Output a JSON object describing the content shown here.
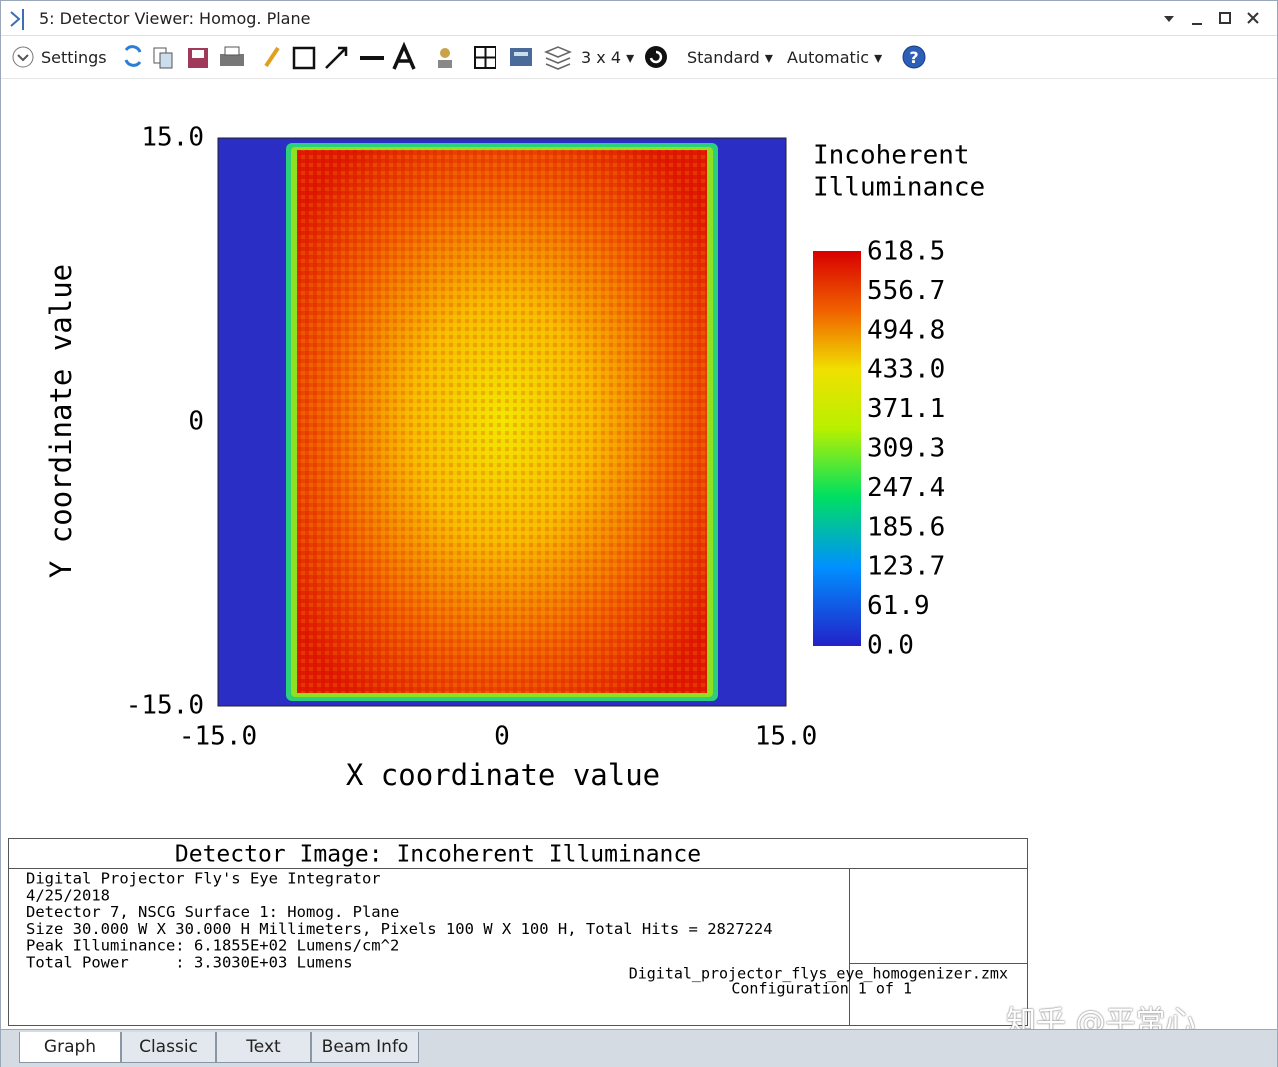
{
  "window": {
    "title": "5: Detector Viewer: Homog. Plane"
  },
  "toolbar": {
    "settings": "Settings",
    "layout": "3 x 4",
    "display": "Standard",
    "scale": "Automatic"
  },
  "plot": {
    "x_label": "X coordinate value",
    "y_label": "Y coordinate value",
    "xticks": [
      "-15.0",
      "0",
      "15.0"
    ],
    "yticks": [
      "15.0",
      "0",
      "-15.0"
    ],
    "legend_title": [
      "Incoherent",
      "Illuminance"
    ],
    "colorbar_ticks": [
      "618.5",
      "556.7",
      "494.8",
      "433.0",
      "371.1",
      "309.3",
      "247.4",
      "185.6",
      "123.7",
      "61.9",
      "0.0"
    ]
  },
  "info": {
    "title": "Detector Image: Incoherent Illuminance",
    "lines": [
      "Digital Projector Fly's Eye Integrator",
      "4/25/2018",
      "Detector 7, NSCG Surface 1: Homog. Plane",
      "Size 30.000 W X 30.000 H Millimeters, Pixels 100 W X 100 H, Total Hits = 2827224",
      "Peak Illuminance: 6.1855E+02 Lumens/cm^2",
      "Total Power     : 3.3030E+03 Lumens"
    ],
    "file": "Digital_projector_flys_eye_homogenizer.zmx",
    "config": "Configuration 1 of 1"
  },
  "tabs": [
    "Graph",
    "Classic",
    "Text",
    "Beam Info"
  ],
  "watermark": "知乎 @平常心"
}
